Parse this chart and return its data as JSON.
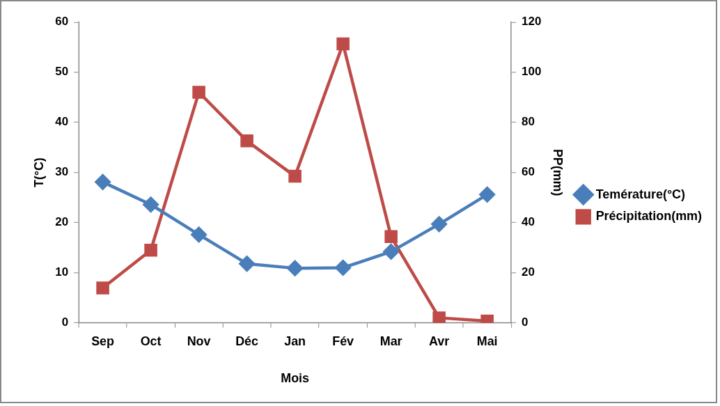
{
  "chart_data": {
    "type": "line",
    "xlabel": "Mois",
    "ylabel": "T(°C)",
    "y2label": "PP(mm)",
    "categories": [
      "Sep",
      "Oct",
      "Nov",
      "Déc",
      "Jan",
      "Fév",
      "Mar",
      "Avr",
      "Mai"
    ],
    "series": [
      {
        "name": "Temérature(°C)",
        "color": "#4a7ebb",
        "marker": "diamond",
        "values": [
          28.1,
          23.6,
          17.6,
          11.8,
          10.9,
          11.0,
          14.2,
          19.7,
          25.6
        ]
      },
      {
        "name": "Précipitation(mm)",
        "color": "#be4b48",
        "marker": "square",
        "axis": "y2",
        "values": [
          13.9,
          29.0,
          92.0,
          72.6,
          58.5,
          111.3,
          34.4,
          2.0,
          0.7
        ]
      }
    ],
    "ylim": [
      0,
      60
    ],
    "yticks": [
      0,
      10,
      20,
      30,
      40,
      50,
      60
    ],
    "y2lim": [
      0,
      120
    ],
    "y2ticks": [
      0,
      20,
      40,
      60,
      80,
      100,
      120
    ],
    "grid": false,
    "legend": "right"
  }
}
